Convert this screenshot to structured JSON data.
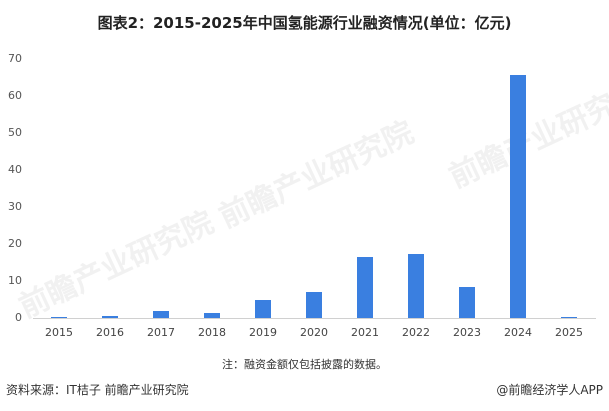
{
  "title": "图表2：2015-2025年中国氢能源行业融资情况(单位：亿元)",
  "note": "注：融资金额仅包括披露的数据。",
  "source": "资料来源：IT桔子 前瞻产业研究院",
  "credit": "@前瞻经济学人APP",
  "watermark": "前瞻产业研究院",
  "colors": {
    "bar": "#3a7fe0",
    "axis": "#d0d0d0"
  },
  "chart_data": {
    "type": "bar",
    "title": "图表2：2015-2025年中国氢能源行业融资情况(单位：亿元)",
    "xlabel": "",
    "ylabel": "亿元",
    "categories": [
      "2015",
      "2016",
      "2017",
      "2018",
      "2019",
      "2020",
      "2021",
      "2022",
      "2023",
      "2024",
      "2025"
    ],
    "values": [
      0.3,
      0.6,
      2.0,
      1.4,
      5.0,
      7.1,
      16.6,
      17.2,
      8.5,
      65.7,
      0.3
    ],
    "yticks": [
      0,
      10,
      20,
      30,
      40,
      50,
      60,
      70
    ],
    "ylim": [
      0,
      70
    ],
    "grid": false,
    "legend": null
  }
}
